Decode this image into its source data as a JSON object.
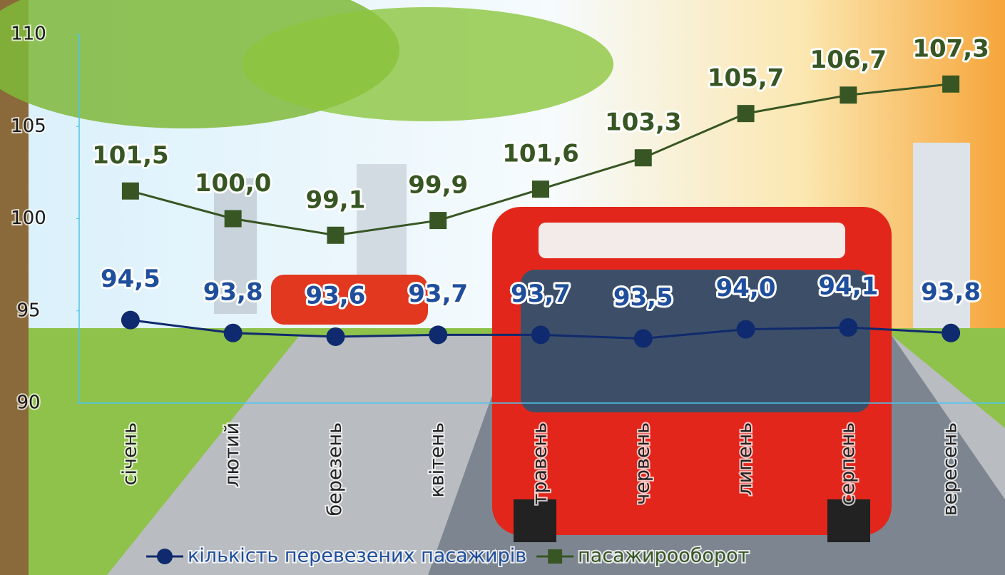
{
  "chart_data": {
    "type": "line",
    "categories": [
      "січень",
      "лютий",
      "березень",
      "квітень",
      "травень",
      "червень",
      "липень",
      "серпень",
      "вересень"
    ],
    "series": [
      {
        "name": "кількість перевезених пасажирів",
        "color": "#0f2a6e",
        "values": [
          94.5,
          93.8,
          93.6,
          93.7,
          93.7,
          93.5,
          94.0,
          94.1,
          93.8
        ],
        "value_labels": [
          "94,5",
          "93,8",
          "93,6",
          "93,7",
          "93,7",
          "93,5",
          "94,0",
          "94,1",
          "93,8"
        ]
      },
      {
        "name": "пасажирооборот",
        "color": "#375623",
        "values": [
          101.5,
          100.0,
          99.1,
          99.9,
          101.6,
          103.3,
          105.7,
          106.7,
          107.3
        ],
        "value_labels": [
          "101,5",
          "100,0",
          "99,1",
          "99,9",
          "101,6",
          "103,3",
          "105,7",
          "106,7",
          "107,3"
        ]
      }
    ],
    "ylim": [
      90,
      110
    ],
    "yticks": [
      90,
      95,
      100,
      105,
      110
    ],
    "legend": "bottom"
  }
}
